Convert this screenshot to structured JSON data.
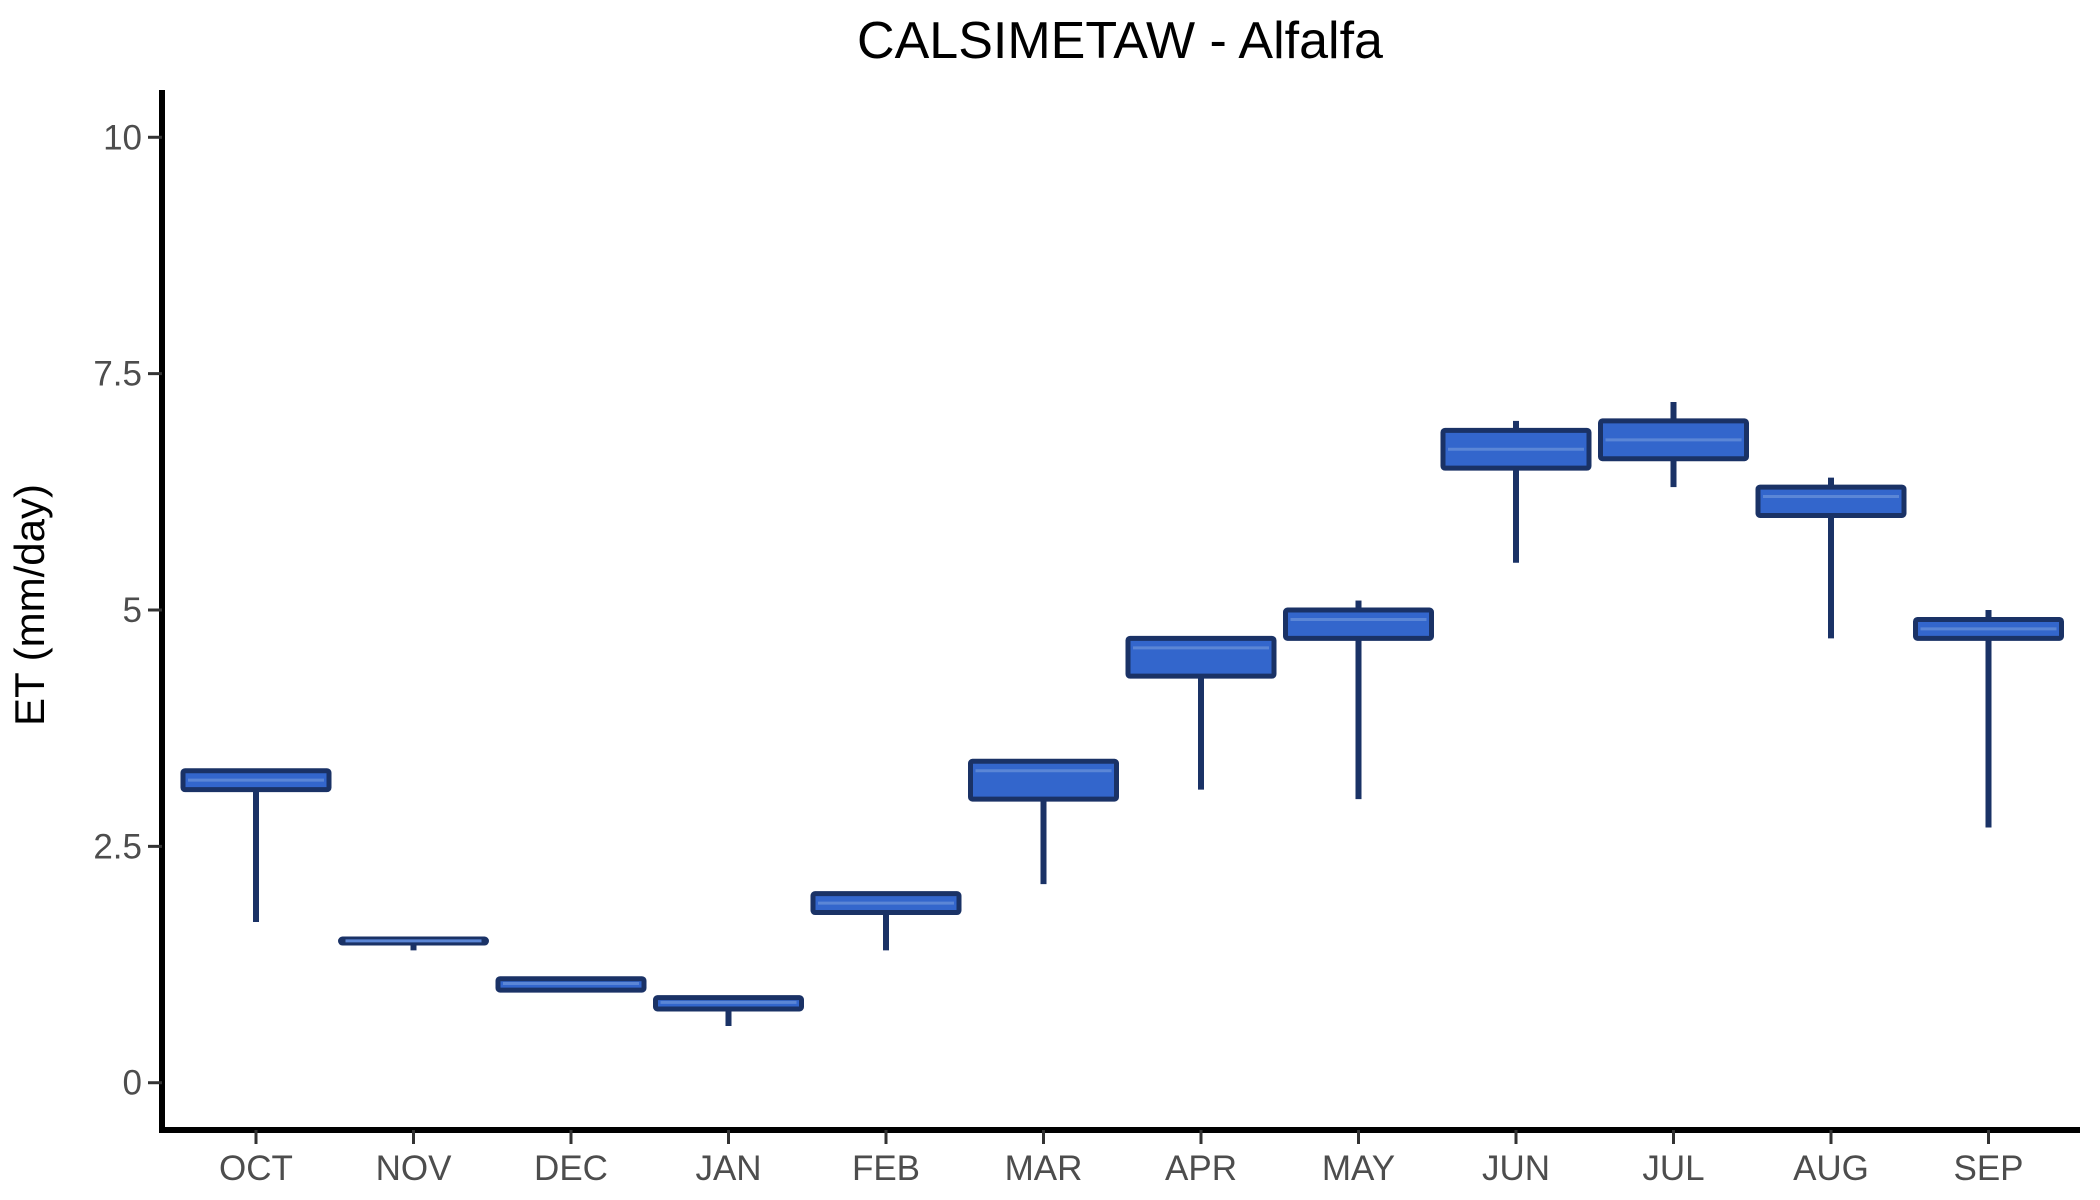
{
  "chart_data": {
    "type": "box",
    "title": "CALSIMETAW - Alfalfa",
    "xlabel": "",
    "ylabel": "ET (mm/day)",
    "ylim": [
      -0.5,
      10.5
    ],
    "y_ticks": [
      {
        "value": 0,
        "label": "0"
      },
      {
        "value": 2.5,
        "label": "2.5"
      },
      {
        "value": 5,
        "label": "5"
      },
      {
        "value": 7.5,
        "label": "7.5"
      },
      {
        "value": 10,
        "label": "10"
      }
    ],
    "categories": [
      "OCT",
      "NOV",
      "DEC",
      "JAN",
      "FEB",
      "MAR",
      "APR",
      "MAY",
      "JUN",
      "JUL",
      "AUG",
      "SEP"
    ],
    "boxes": [
      {
        "category": "OCT",
        "min": 1.7,
        "q1": 3.1,
        "median": 3.2,
        "q3": 3.3,
        "max": 3.3
      },
      {
        "category": "NOV",
        "min": 1.4,
        "q1": 1.48,
        "median": 1.5,
        "q3": 1.52,
        "max": 1.52
      },
      {
        "category": "DEC",
        "min": 0.98,
        "q1": 0.98,
        "median": 1.05,
        "q3": 1.1,
        "max": 1.1
      },
      {
        "category": "JAN",
        "min": 0.6,
        "q1": 0.78,
        "median": 0.85,
        "q3": 0.9,
        "max": 0.9
      },
      {
        "category": "FEB",
        "min": 1.4,
        "q1": 1.8,
        "median": 1.9,
        "q3": 2.0,
        "max": 2.0
      },
      {
        "category": "MAR",
        "min": 2.1,
        "q1": 3.0,
        "median": 3.3,
        "q3": 3.4,
        "max": 3.4
      },
      {
        "category": "APR",
        "min": 3.1,
        "q1": 4.3,
        "median": 4.6,
        "q3": 4.7,
        "max": 4.7
      },
      {
        "category": "MAY",
        "min": 3.0,
        "q1": 4.7,
        "median": 4.9,
        "q3": 5.0,
        "max": 5.1
      },
      {
        "category": "JUN",
        "min": 5.5,
        "q1": 6.5,
        "median": 6.7,
        "q3": 6.9,
        "max": 7.0
      },
      {
        "category": "JUL",
        "min": 6.3,
        "q1": 6.6,
        "median": 6.8,
        "q3": 7.0,
        "max": 7.2
      },
      {
        "category": "AUG",
        "min": 4.7,
        "q1": 6.0,
        "median": 6.2,
        "q3": 6.3,
        "max": 6.4
      },
      {
        "category": "SEP",
        "min": 2.7,
        "q1": 4.7,
        "median": 4.8,
        "q3": 4.9,
        "max": 5.0
      }
    ],
    "grid": false,
    "legend": "none",
    "colors": {
      "box_fill": "#3366cc",
      "box_stroke": "#1a3266",
      "whisker": "#1a3266",
      "median": "#5b86d6"
    }
  }
}
